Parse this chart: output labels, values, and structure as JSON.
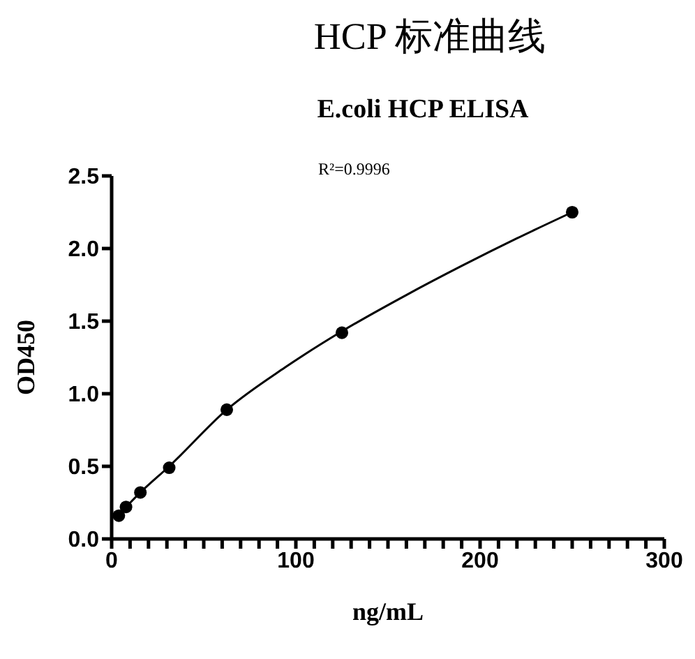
{
  "chart_data": {
    "type": "scatter",
    "title": "HCP 标准曲线",
    "subtitle": "E.coli HCP ELISA",
    "xlabel": "ng/mL",
    "ylabel": "OD450",
    "annotations": [
      "R²=0.9996"
    ],
    "marker": "circle",
    "xlim": [
      0,
      300
    ],
    "xticks": [
      0,
      {
        "value": 10,
        "label": null
      },
      {
        "value": 20,
        "label": null
      },
      {
        "value": 30,
        "label": null
      },
      {
        "value": 40,
        "label": null
      },
      {
        "value": 50,
        "label": null
      },
      {
        "value": 60,
        "label": null
      },
      {
        "value": 70,
        "label": null
      },
      {
        "value": 80,
        "label": null
      },
      {
        "value": 90,
        "label": null
      },
      100,
      {
        "value": 110,
        "label": null
      },
      {
        "value": 120,
        "label": null
      },
      {
        "value": 130,
        "label": null
      },
      {
        "value": 140,
        "label": null
      },
      {
        "value": 150,
        "label": null
      },
      {
        "value": 160,
        "label": null
      },
      {
        "value": 170,
        "label": null
      },
      {
        "value": 180,
        "label": null
      },
      {
        "value": 190,
        "label": null
      },
      200,
      {
        "value": 210,
        "label": null
      },
      {
        "value": 220,
        "label": null
      },
      {
        "value": 230,
        "label": null
      },
      {
        "value": 240,
        "label": null
      },
      {
        "value": 250,
        "label": null
      },
      {
        "value": 260,
        "label": null
      },
      {
        "value": 270,
        "label": null
      },
      {
        "value": 280,
        "label": null
      },
      {
        "value": 290,
        "label": null
      },
      300
    ],
    "ylim": [
      0,
      2.5
    ],
    "yticks": [
      {
        "value": 0,
        "label": "0.0"
      },
      {
        "value": 0.5,
        "label": "0.5"
      },
      {
        "value": 1,
        "label": "1.0"
      },
      1.5,
      {
        "value": 2,
        "label": "2.0"
      },
      2.5
    ],
    "series": [
      {
        "color": "#000000",
        "x": [
          3.9,
          7.8,
          15.6,
          31.25,
          62.5,
          125,
          250
        ],
        "values": [
          0.16,
          0.22,
          0.32,
          0.49,
          0.89,
          1.42,
          2.25
        ]
      },
      {
        "type": "line",
        "color": "#000000",
        "marker": "none",
        "x": [
          2,
          3.9,
          7.8,
          15.6,
          31.25,
          62.5,
          94,
          125,
          160,
          190,
          220,
          250
        ],
        "values": [
          0.14,
          0.17,
          0.22,
          0.32,
          0.5,
          0.89,
          1.18,
          1.43,
          1.68,
          1.88,
          2.07,
          2.25
        ]
      }
    ]
  }
}
